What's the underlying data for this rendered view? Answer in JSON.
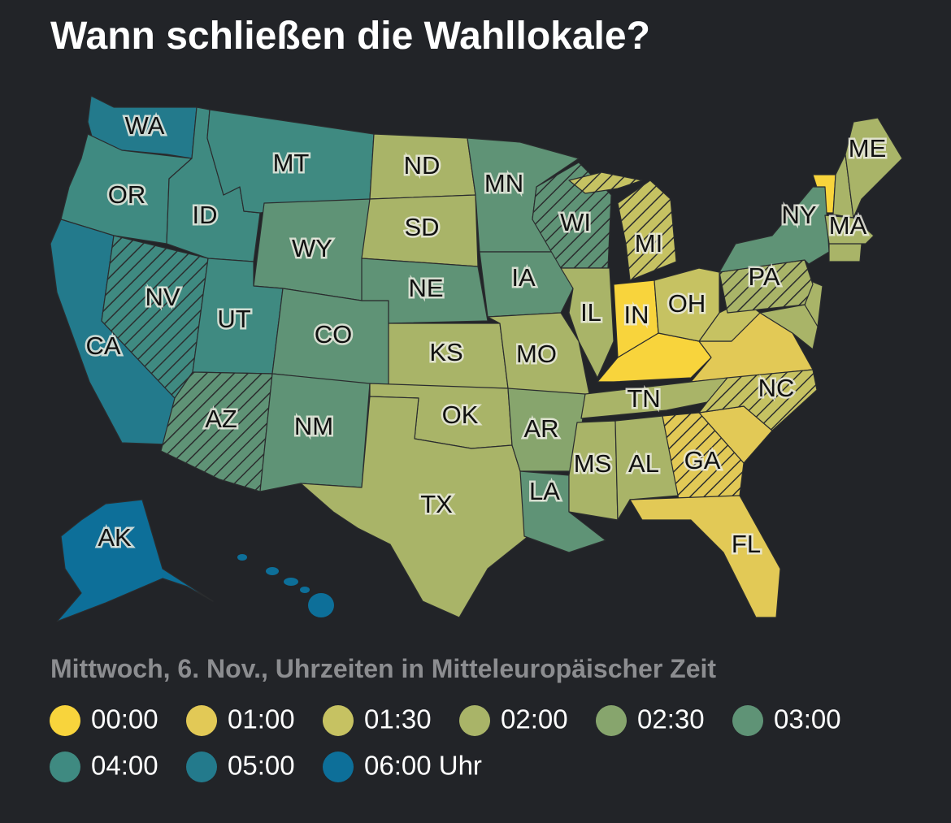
{
  "title": "Wann schließen die Wahllokale?",
  "subtitle": "Mittwoch, 6. Nov., Uhrzeiten in Mitteleuropäischer Zeit",
  "legend": [
    {
      "label": "00:00",
      "color": "#f8d43c"
    },
    {
      "label": "01:00",
      "color": "#e2c956"
    },
    {
      "label": "01:30",
      "color": "#c6c262"
    },
    {
      "label": "02:00",
      "color": "#a9b468"
    },
    {
      "label": "02:30",
      "color": "#87a56d"
    },
    {
      "label": "03:00",
      "color": "#5f9376"
    },
    {
      "label": "04:00",
      "color": "#3f8a81"
    },
    {
      "label": "05:00",
      "color": "#237a8c"
    },
    {
      "label": "06:00 Uhr",
      "color": "#0d6f99"
    }
  ],
  "states": [
    {
      "label": "WA",
      "color": "#237a8c",
      "hatched": false
    },
    {
      "label": "OR",
      "color": "#3f8a81",
      "hatched": false
    },
    {
      "label": "CA",
      "color": "#237a8c",
      "hatched": false
    },
    {
      "label": "ID",
      "color": "#3f8a81",
      "hatched": false
    },
    {
      "label": "NV",
      "color": "#3f8a81",
      "hatched": true
    },
    {
      "label": "MT",
      "color": "#3f8a81",
      "hatched": false
    },
    {
      "label": "WY",
      "color": "#5f9376",
      "hatched": false
    },
    {
      "label": "UT",
      "color": "#3f8a81",
      "hatched": false
    },
    {
      "label": "AZ",
      "color": "#5f9376",
      "hatched": true
    },
    {
      "label": "CO",
      "color": "#5f9376",
      "hatched": false
    },
    {
      "label": "NM",
      "color": "#5f9376",
      "hatched": false
    },
    {
      "label": "ND",
      "color": "#a9b468",
      "hatched": false
    },
    {
      "label": "SD",
      "color": "#a9b468",
      "hatched": false
    },
    {
      "label": "NE",
      "color": "#5f9376",
      "hatched": false
    },
    {
      "label": "KS",
      "color": "#a9b468",
      "hatched": false
    },
    {
      "label": "OK",
      "color": "#a9b468",
      "hatched": false
    },
    {
      "label": "TX",
      "color": "#a9b468",
      "hatched": false
    },
    {
      "label": "MN",
      "color": "#5f9376",
      "hatched": false
    },
    {
      "label": "IA",
      "color": "#5f9376",
      "hatched": false
    },
    {
      "label": "MO",
      "color": "#a9b468",
      "hatched": false
    },
    {
      "label": "AR",
      "color": "#87a56d",
      "hatched": false
    },
    {
      "label": "LA",
      "color": "#5f9376",
      "hatched": false
    },
    {
      "label": "WI",
      "color": "#5f9376",
      "hatched": true
    },
    {
      "label": "IL",
      "color": "#a9b468",
      "hatched": false
    },
    {
      "label": "MI",
      "color": "#c6c262",
      "hatched": true
    },
    {
      "label": "IN",
      "color": "#f8d43c",
      "hatched": false
    },
    {
      "label": "OH",
      "color": "#c6c262",
      "hatched": false
    },
    {
      "label": "TN",
      "color": "#a9b468",
      "hatched": false
    },
    {
      "label": "MS",
      "color": "#a9b468",
      "hatched": false
    },
    {
      "label": "AL",
      "color": "#a9b468",
      "hatched": false
    },
    {
      "label": "GA",
      "color": "#e2c956",
      "hatched": true
    },
    {
      "label": "FL",
      "color": "#e2c956",
      "hatched": false
    },
    {
      "label": "NC",
      "color": "#c6c262",
      "hatched": true
    },
    {
      "label": "PA",
      "color": "#a9b468",
      "hatched": true
    },
    {
      "label": "NY",
      "color": "#5f9376",
      "hatched": false
    },
    {
      "label": "ME",
      "color": "#a9b468",
      "hatched": false
    },
    {
      "label": "MA",
      "color": "#a9b468",
      "hatched": false
    },
    {
      "label": "AK",
      "color": "#0d6f99",
      "hatched": false
    }
  ]
}
